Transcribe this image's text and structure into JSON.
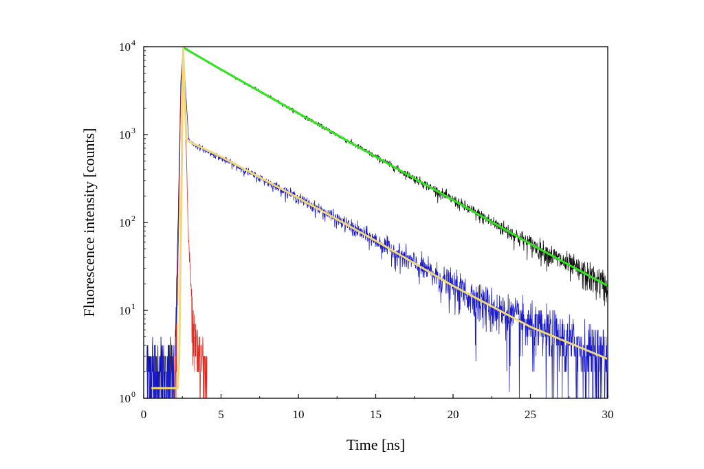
{
  "chart_data": {
    "type": "line",
    "title": "",
    "xlabel": "Time [ns]",
    "ylabel": "Fluorescence intensity [counts]",
    "xlim": [
      0,
      30
    ],
    "ylim": [
      1,
      10000
    ],
    "yscale": "log",
    "grid": false,
    "legend": "none",
    "x_ticks": [
      0,
      5,
      10,
      15,
      20,
      25,
      30
    ],
    "x_tick_labels": [
      "0",
      "5",
      "10",
      "15",
      "20",
      "25",
      "30"
    ],
    "y_ticks": [
      1,
      10,
      100,
      1000,
      10000
    ],
    "y_tick_labels": [
      {
        "base": "10",
        "exp": "0"
      },
      {
        "base": "10",
        "exp": "1"
      },
      {
        "base": "10",
        "exp": "2"
      },
      {
        "base": "10",
        "exp": "3"
      },
      {
        "base": "10",
        "exp": "4"
      }
    ],
    "series": [
      {
        "style": "noisy",
        "color": "#111111",
        "x": [
          0.2,
          2.0,
          2.2,
          2.4,
          2.55,
          5,
          10,
          15,
          20,
          25,
          30
        ],
        "values": [
          2.2,
          2.2,
          60,
          4000,
          9800,
          5500,
          1750,
          560,
          180,
          57,
          19
        ]
      },
      {
        "style": "noisy",
        "color": "#1a1acc",
        "x": [
          0.2,
          2.0,
          2.2,
          2.4,
          2.55,
          2.9,
          3.2,
          5,
          10,
          15,
          20,
          25,
          30
        ],
        "values": [
          1.8,
          1.8,
          30,
          3500,
          9800,
          900,
          780,
          540,
          190,
          62,
          19,
          6.5,
          2.8
        ]
      },
      {
        "style": "noisy",
        "color": "#e0281e",
        "x": [
          2.0,
          2.2,
          2.4,
          2.55,
          2.7,
          2.9,
          3.2,
          3.6,
          4.1
        ],
        "values": [
          1.0,
          20,
          3000,
          9800,
          1500,
          60,
          8,
          3,
          2
        ]
      },
      {
        "style": "fit",
        "color": "#2ee51c",
        "x": [
          2.55,
          5,
          10,
          15,
          20,
          25,
          30
        ],
        "values": [
          9800,
          5500,
          1750,
          560,
          180,
          57,
          19
        ]
      },
      {
        "style": "fit",
        "color": "#f0d878",
        "x": [
          0.5,
          2.2,
          2.3,
          2.45,
          2.55,
          2.75,
          3.0,
          5,
          10,
          15,
          20,
          25,
          30
        ],
        "values": [
          1.3,
          1.3,
          3,
          300,
          9800,
          900,
          820,
          560,
          190,
          62,
          19,
          6.5,
          2.8
        ]
      }
    ]
  }
}
